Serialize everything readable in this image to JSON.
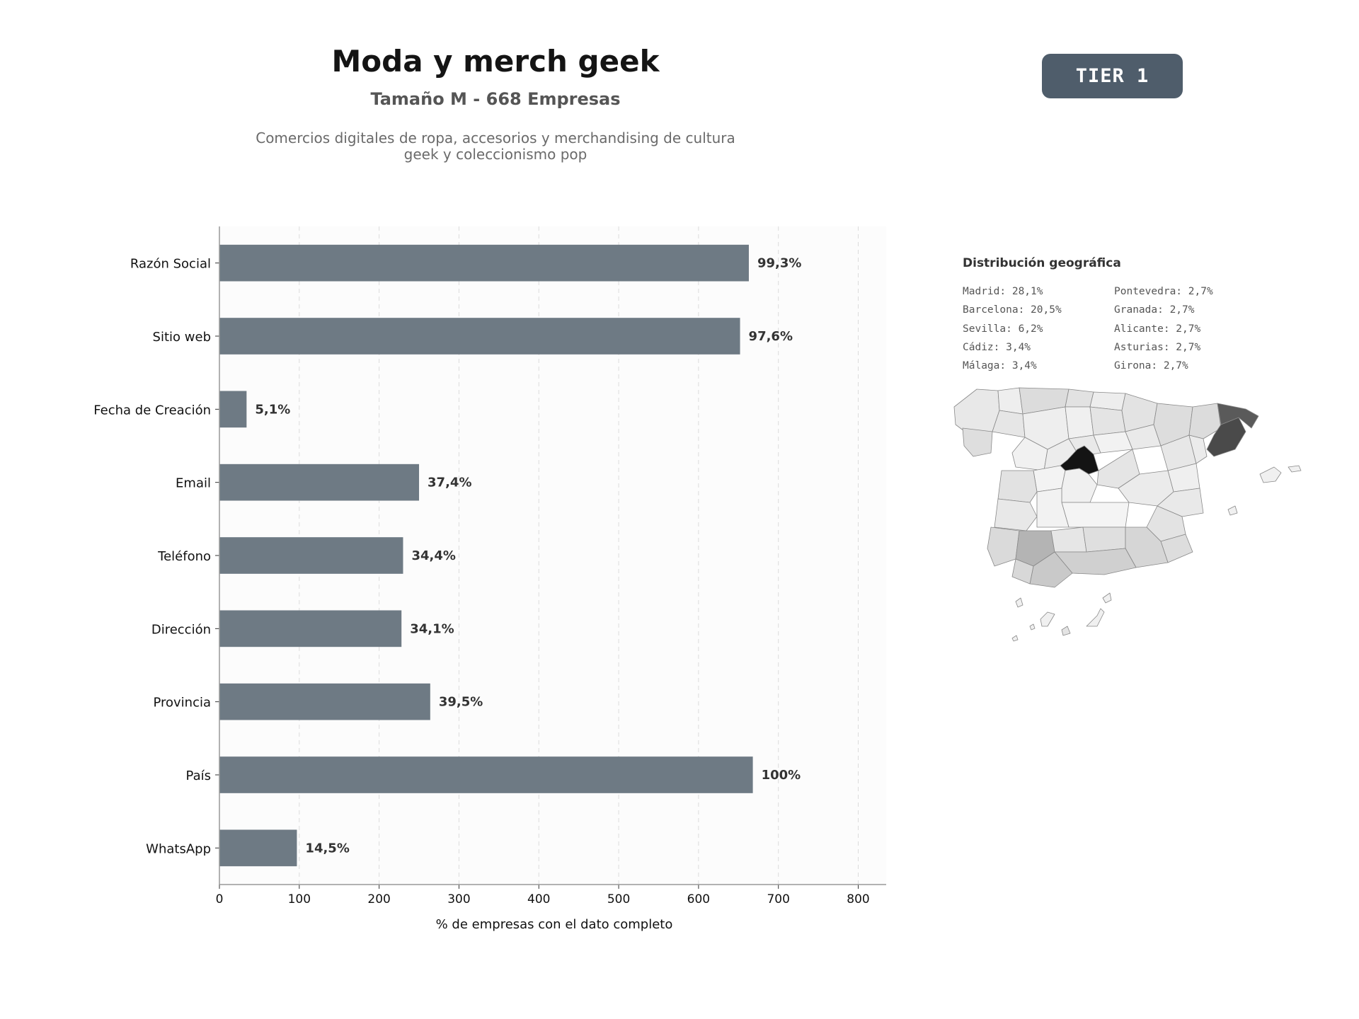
{
  "header": {
    "title": "Moda y merch geek",
    "subtitle": "Tamaño M - 668 Empresas",
    "description": "Comercios digitales de ropa, accesorios y merchandising de cultura geek y coleccionismo pop",
    "tier": "TIER 1"
  },
  "chart_data": {
    "type": "bar",
    "orientation": "horizontal",
    "categories": [
      "Razón Social",
      "Sitio web",
      "Fecha de Creación",
      "Email",
      "Teléfono",
      "Dirección",
      "Provincia",
      "País",
      "WhatsApp"
    ],
    "values": [
      663,
      652,
      34,
      250,
      230,
      228,
      264,
      668,
      97
    ],
    "data_labels": [
      "99,3%",
      "97,6%",
      "5,1%",
      "37,4%",
      "34,4%",
      "34,1%",
      "39,5%",
      "100%",
      "14,5%"
    ],
    "xlabel": "% de empresas con el dato completo",
    "ylabel": "",
    "xlim": [
      0,
      835
    ],
    "xticks": [
      0,
      100,
      200,
      300,
      400,
      500,
      600,
      700,
      800
    ],
    "grid": "vertical dashed",
    "bar_color": "#6e7a84"
  },
  "geo": {
    "title": "Distribución geográfica",
    "col1": [
      "Madrid: 28,1%",
      "Barcelona: 20,5%",
      "Sevilla: 6,2%",
      "Cádiz: 3,4%",
      "Málaga: 3,4%"
    ],
    "col2": [
      "Pontevedra: 2,7%",
      "Granada: 2,7%",
      "Alicante: 2,7%",
      "Asturias: 2,7%",
      "Girona: 2,7%"
    ]
  }
}
